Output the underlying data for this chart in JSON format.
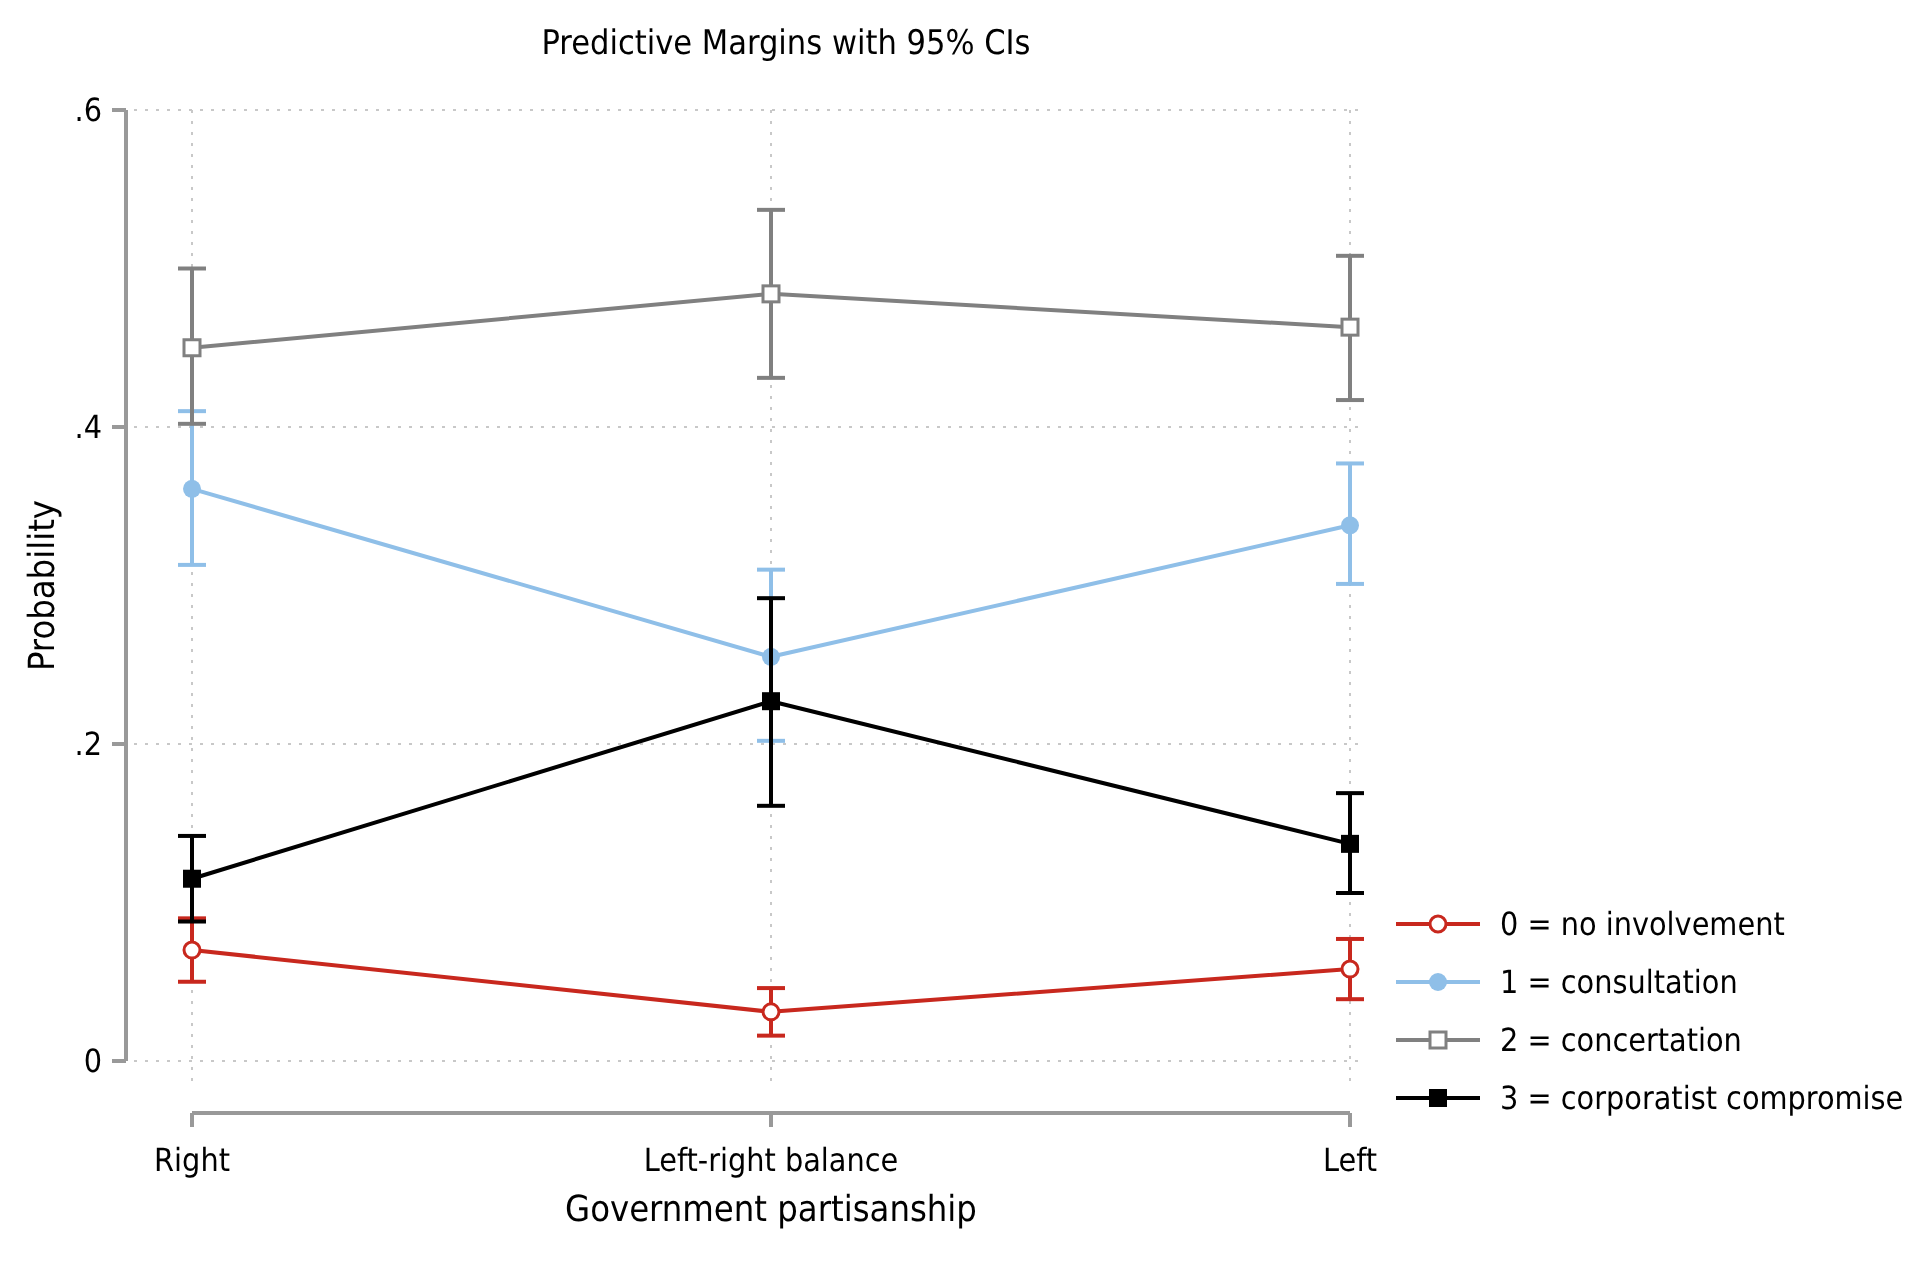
{
  "chart_data": {
    "type": "line",
    "title": "Predictive Margins with 95% CIs",
    "xlabel": "Government partisanship",
    "ylabel": "Probability",
    "categories": [
      "Right",
      "Left-right balance",
      "Left"
    ],
    "ylim": [
      0,
      0.6
    ],
    "yticks": [
      {
        "value": 0,
        "label": "0"
      },
      {
        "value": 0.2,
        "label": ".2"
      },
      {
        "value": 0.4,
        "label": ".4"
      },
      {
        "value": 0.6,
        "label": ".6"
      }
    ],
    "grid": true,
    "legend": "right",
    "line_style": "solid",
    "series": [
      {
        "name": "0 = no involvement",
        "color": "#c8281e",
        "marker": "circle-open",
        "values": [
          0.07,
          0.031,
          0.058
        ],
        "errors": [
          [
            0.05,
            0.09
          ],
          [
            0.016,
            0.046
          ],
          [
            0.039,
            0.077
          ]
        ]
      },
      {
        "name": "1 = consultation",
        "color": "#8fbfe8",
        "marker": "circle",
        "values": [
          0.361,
          0.255,
          0.338
        ],
        "errors": [
          [
            0.313,
            0.41
          ],
          [
            0.202,
            0.31
          ],
          [
            0.301,
            0.377
          ]
        ]
      },
      {
        "name": "2 = concertation",
        "color": "#808080",
        "marker": "square-open",
        "values": [
          0.45,
          0.484,
          0.463
        ],
        "errors": [
          [
            0.402,
            0.5
          ],
          [
            0.431,
            0.537
          ],
          [
            0.417,
            0.508
          ]
        ]
      },
      {
        "name": "3 = corporatist compromise",
        "color": "#000000",
        "marker": "square",
        "values": [
          0.115,
          0.227,
          0.137
        ],
        "errors": [
          [
            0.088,
            0.142
          ],
          [
            0.161,
            0.292
          ],
          [
            0.106,
            0.169
          ]
        ]
      }
    ]
  }
}
